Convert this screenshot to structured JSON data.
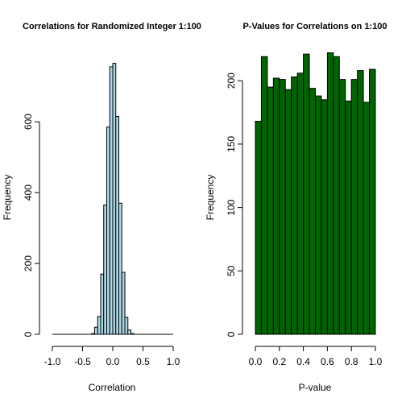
{
  "chart_data": [
    {
      "type": "bar",
      "title": "Correlations for Randomized Integer 1:100",
      "xlabel": "Correlation",
      "ylabel": "Frequency",
      "fill_color": "#add8e6",
      "xlim": [
        -1.0,
        1.0
      ],
      "ylim": [
        0,
        780
      ],
      "x_ticks": [
        -1.0,
        -0.5,
        0.0,
        0.5,
        1.0
      ],
      "x_tick_labels": [
        "-1.0",
        "-0.5",
        "0.0",
        "0.5",
        "1.0"
      ],
      "y_ticks": [
        0,
        200,
        400,
        600
      ],
      "y_tick_labels": [
        "0",
        "200",
        "400",
        "600"
      ],
      "bin_edges": [
        -0.35,
        -0.3,
        -0.25,
        -0.2,
        -0.15,
        -0.1,
        -0.05,
        0.0,
        0.05,
        0.1,
        0.15,
        0.2,
        0.25,
        0.3,
        0.35
      ],
      "values": [
        2,
        20,
        50,
        170,
        365,
        585,
        755,
        765,
        615,
        370,
        175,
        48,
        12,
        2
      ]
    },
    {
      "type": "bar",
      "title": "P-Values for Correlations on 1:100",
      "xlabel": "P-value",
      "ylabel": "Frequency",
      "fill_color": "#006400",
      "xlim": [
        0.0,
        1.0
      ],
      "ylim": [
        0,
        230
      ],
      "x_ticks": [
        0.0,
        0.2,
        0.4,
        0.6,
        0.8,
        1.0
      ],
      "x_tick_labels": [
        "0.0",
        "0.2",
        "0.4",
        "0.6",
        "0.8",
        "1.0"
      ],
      "y_ticks": [
        0,
        50,
        100,
        150,
        200
      ],
      "y_tick_labels": [
        "0",
        "50",
        "100",
        "150",
        "200"
      ],
      "bin_edges": [
        0.0,
        0.05,
        0.1,
        0.15,
        0.2,
        0.25,
        0.3,
        0.35,
        0.4,
        0.45,
        0.5,
        0.55,
        0.6,
        0.65,
        0.7,
        0.75,
        0.8,
        0.85,
        0.9,
        0.95,
        1.0
      ],
      "values": [
        168,
        219,
        195,
        202,
        201,
        193,
        203,
        206,
        221,
        194,
        188,
        185,
        222,
        219,
        201,
        184,
        201,
        208,
        183,
        209
      ]
    }
  ]
}
